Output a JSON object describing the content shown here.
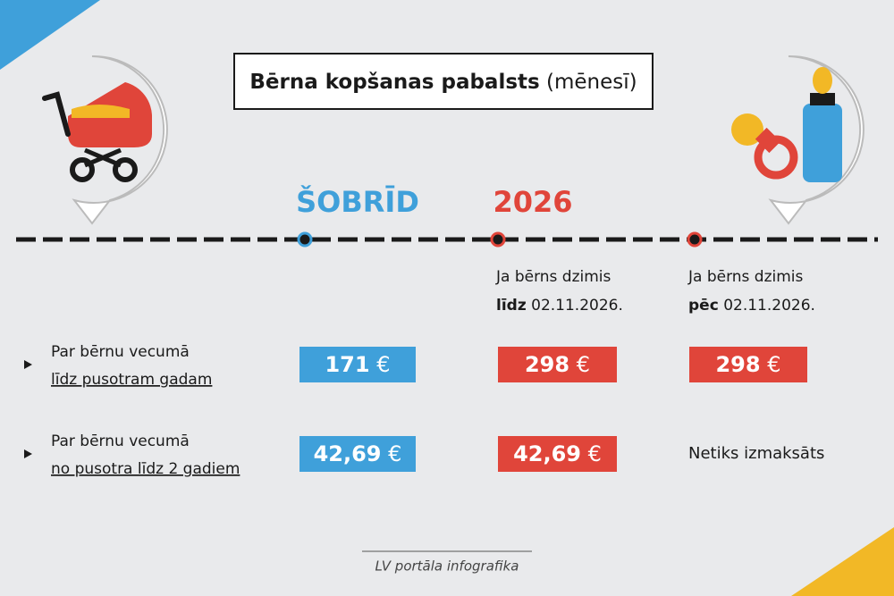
{
  "header": {
    "title": "Bērna kopšanas pabalsts",
    "title_suffix": "(mēnesī)"
  },
  "timeline": {
    "now": "ŠOBRĪD",
    "year": "2026"
  },
  "columns": [
    {
      "line1": "Ja bērns dzimis",
      "keyword": "līdz",
      "date": "02.11.2026."
    },
    {
      "line1": "Ja bērns dzimis",
      "keyword": "pēc",
      "date": "02.11.2026."
    }
  ],
  "rows": [
    {
      "label1": "Par bērnu vecumā",
      "label2": "līdz pusotram gadam",
      "cells": [
        {
          "amount": "171",
          "currency": "€"
        },
        {
          "amount": "298",
          "currency": "€"
        },
        {
          "amount": "298",
          "currency": "€"
        }
      ]
    },
    {
      "label1": "Par bērnu vecumā",
      "label2": "no pusotra līdz 2 gadiem",
      "cells": [
        {
          "amount": "42,69",
          "currency": "€"
        },
        {
          "amount": "42,69",
          "currency": "€"
        },
        {
          "text": "Netiks izmaksāts"
        }
      ]
    }
  ],
  "footer": "LV portāla infografika"
}
